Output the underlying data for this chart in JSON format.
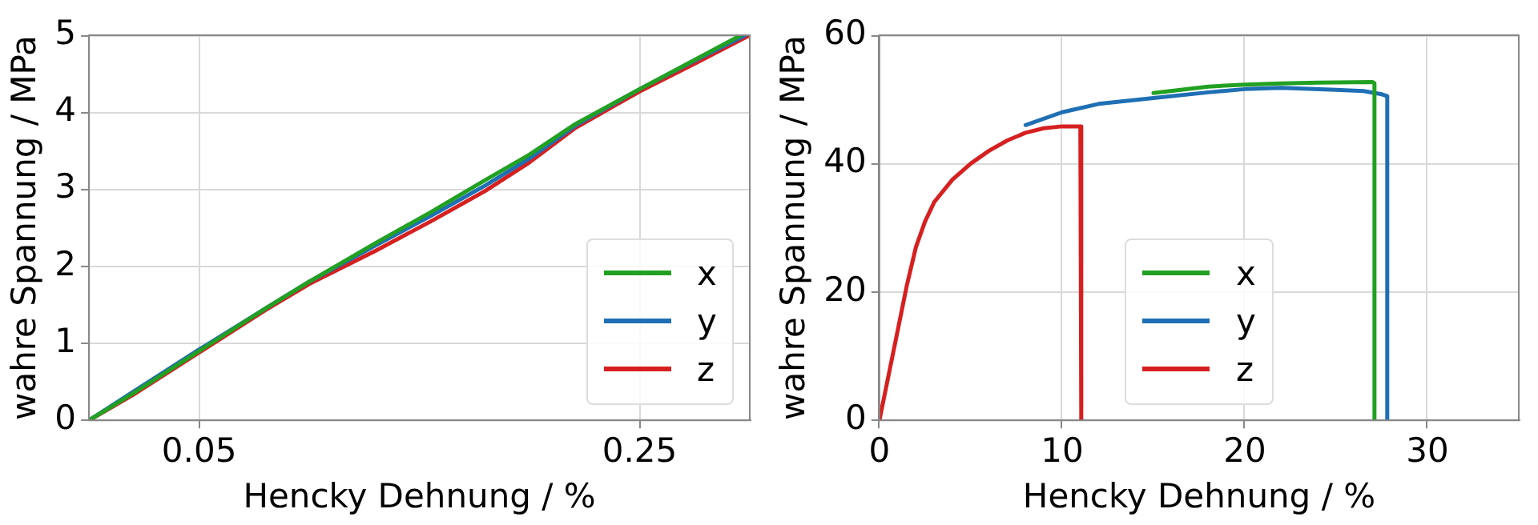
{
  "chart_data": [
    {
      "type": "line",
      "xlabel": "Hencky Dehnung / %",
      "ylabel": "wahre Spannung / MPa",
      "xlim": [
        0,
        0.3
      ],
      "ylim": [
        0,
        5
      ],
      "xticks": [
        0.05,
        0.25
      ],
      "yticks": [
        0,
        1,
        2,
        3,
        4,
        5
      ],
      "grid": true,
      "legend": "bottom right",
      "series": [
        {
          "name": "x",
          "color": "#22a022",
          "x": [
            0,
            0.02,
            0.05,
            0.08,
            0.1,
            0.13,
            0.155,
            0.18,
            0.2,
            0.221,
            0.25,
            0.275,
            0.296
          ],
          "values": [
            0,
            0.35,
            0.9,
            1.45,
            1.8,
            2.3,
            2.7,
            3.12,
            3.45,
            3.85,
            4.3,
            4.68,
            5
          ]
        },
        {
          "name": "y",
          "color": "#1f6fb4",
          "x": [
            0,
            0.02,
            0.05,
            0.08,
            0.1,
            0.13,
            0.155,
            0.18,
            0.2,
            0.221,
            0.25,
            0.275,
            0.298
          ],
          "values": [
            0,
            0.37,
            0.92,
            1.45,
            1.8,
            2.27,
            2.65,
            3.05,
            3.4,
            3.83,
            4.3,
            4.67,
            5
          ]
        },
        {
          "name": "z",
          "color": "#d62020",
          "x": [
            0,
            0.02,
            0.05,
            0.08,
            0.1,
            0.13,
            0.155,
            0.18,
            0.2,
            0.221,
            0.25,
            0.275,
            0.3
          ],
          "values": [
            0,
            0.33,
            0.88,
            1.43,
            1.77,
            2.2,
            2.58,
            2.98,
            3.35,
            3.8,
            4.27,
            4.63,
            5
          ]
        }
      ]
    },
    {
      "type": "line",
      "xlabel": "Hencky Dehnung / %",
      "ylabel": "wahre Spannung / MPa",
      "xlim": [
        0,
        35
      ],
      "ylim": [
        0,
        60
      ],
      "xticks": [
        0,
        10,
        20,
        30
      ],
      "yticks": [
        0,
        20,
        40,
        60
      ],
      "grid": true,
      "legend": "bottom",
      "series": [
        {
          "name": "x",
          "color": "#22a022",
          "x": [
            15,
            18,
            20,
            22,
            24,
            27,
            27.1,
            27.1
          ],
          "values": [
            51,
            52,
            52.3,
            52.5,
            52.6,
            52.7,
            52.5,
            0
          ]
        },
        {
          "name": "y",
          "color": "#1f6fb4",
          "x": [
            8,
            10,
            12,
            15,
            18,
            20,
            22,
            25,
            26.5,
            27.5,
            27.8,
            27.8
          ],
          "values": [
            46,
            48,
            49.3,
            50.2,
            51.1,
            51.6,
            51.8,
            51.5,
            51.3,
            50.8,
            50.5,
            0
          ]
        },
        {
          "name": "z",
          "color": "#d62020",
          "x": [
            0,
            1,
            1.5,
            2,
            2.5,
            3,
            4,
            5,
            6,
            7,
            8,
            9,
            10,
            11,
            11.05,
            11.05
          ],
          "values": [
            0,
            14,
            21,
            27,
            31,
            34,
            37.5,
            40,
            42,
            43.6,
            44.8,
            45.5,
            45.8,
            45.8,
            45.8,
            0
          ]
        }
      ]
    }
  ]
}
